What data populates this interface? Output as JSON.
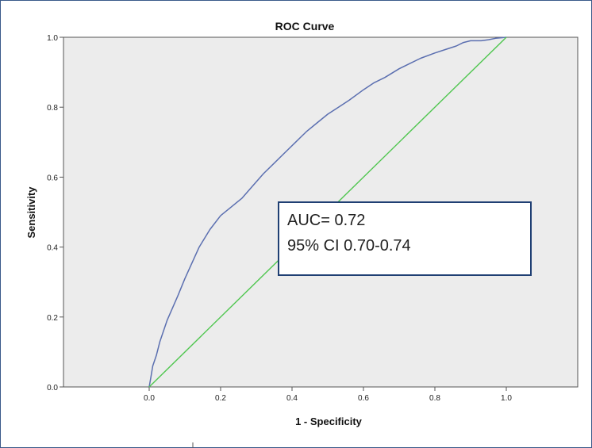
{
  "chart_data": {
    "type": "line",
    "title": "ROC Curve",
    "xlabel": "1 - Specificity",
    "ylabel": "Sensitivity",
    "xlim": [
      0.0,
      1.0
    ],
    "ylim": [
      0.0,
      1.0
    ],
    "x_ticks": [
      "0.0",
      "0.2",
      "0.4",
      "0.6",
      "0.8",
      "1.0"
    ],
    "y_ticks": [
      "0.0",
      "0.2",
      "0.4",
      "0.6",
      "0.8",
      "1.0"
    ],
    "grid": false,
    "series": [
      {
        "color": "#5b6fb0",
        "x": [
          0.0,
          0.005,
          0.01,
          0.02,
          0.03,
          0.05,
          0.08,
          0.1,
          0.14,
          0.17,
          0.2,
          0.23,
          0.26,
          0.29,
          0.32,
          0.35,
          0.38,
          0.41,
          0.44,
          0.47,
          0.5,
          0.53,
          0.56,
          0.6,
          0.63,
          0.66,
          0.7,
          0.73,
          0.76,
          0.8,
          0.83,
          0.86,
          0.88,
          0.9,
          0.93,
          0.95,
          0.97,
          1.0
        ],
        "y": [
          0.0,
          0.03,
          0.06,
          0.09,
          0.13,
          0.19,
          0.26,
          0.31,
          0.4,
          0.45,
          0.49,
          0.515,
          0.54,
          0.575,
          0.61,
          0.64,
          0.67,
          0.7,
          0.73,
          0.755,
          0.78,
          0.8,
          0.82,
          0.85,
          0.87,
          0.885,
          0.91,
          0.925,
          0.94,
          0.955,
          0.965,
          0.975,
          0.985,
          0.99,
          0.99,
          0.993,
          0.997,
          1.0
        ]
      },
      {
        "color": "#4fc64f",
        "x": [
          0.0,
          1.0
        ],
        "y": [
          0.0,
          1.0
        ]
      }
    ],
    "annotations": [
      {
        "line1": "AUC= 0.72",
        "line2": "95% CI 0.70-0.74",
        "border_color": "#1f3f73"
      }
    ],
    "background_color": "#ececec"
  }
}
